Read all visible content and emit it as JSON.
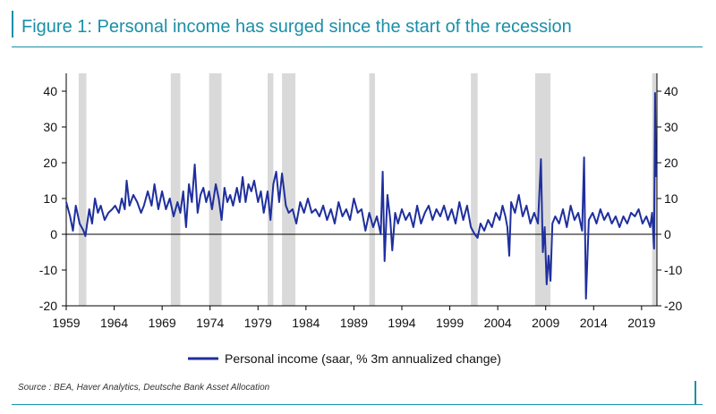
{
  "title": "Figure 1: Personal income has surged since the start of the recession",
  "source": "Source : BEA, Haver Analytics, Deutsche Bank Asset Allocation",
  "colors": {
    "series": "#1f2f9e",
    "recession": "#d9d9d9",
    "accent": "#1a8fa8",
    "axis": "#000000"
  },
  "chart_data": {
    "type": "line",
    "title": "Figure 1: Personal income has surged since the start of the recession",
    "xlabel": "",
    "ylabel": "",
    "xlim": [
      1959,
      2020.6
    ],
    "ylim": [
      -20,
      45
    ],
    "y_ticks": [
      -20,
      -10,
      0,
      10,
      20,
      30,
      40
    ],
    "y_ticks_right": [
      -20,
      -10,
      0,
      10,
      20,
      30,
      40
    ],
    "x_ticks": [
      1959,
      1964,
      1969,
      1974,
      1979,
      1984,
      1989,
      1994,
      1999,
      2004,
      2009,
      2014,
      2019
    ],
    "grid": false,
    "legend": "bottom-center",
    "recessions": [
      [
        1960.3,
        1961.1
      ],
      [
        1969.9,
        1970.9
      ],
      [
        1973.9,
        1975.2
      ],
      [
        1980.0,
        1980.6
      ],
      [
        1981.5,
        1982.9
      ],
      [
        1990.6,
        1991.2
      ],
      [
        2001.2,
        2001.9
      ],
      [
        2007.9,
        2009.5
      ],
      [
        2020.1,
        2020.6
      ]
    ],
    "series": [
      {
        "name": "Personal income (saar, % 3m annualized change)",
        "points": [
          [
            1959.0,
            9
          ],
          [
            1959.4,
            5
          ],
          [
            1959.7,
            1
          ],
          [
            1960.0,
            8
          ],
          [
            1960.4,
            3
          ],
          [
            1960.8,
            1
          ],
          [
            1961.0,
            -0.5
          ],
          [
            1961.4,
            7
          ],
          [
            1961.7,
            3
          ],
          [
            1962.0,
            10
          ],
          [
            1962.3,
            6
          ],
          [
            1962.6,
            8
          ],
          [
            1963.0,
            4
          ],
          [
            1963.4,
            6
          ],
          [
            1963.8,
            7
          ],
          [
            1964.1,
            8
          ],
          [
            1964.5,
            6
          ],
          [
            1964.8,
            10
          ],
          [
            1965.1,
            7
          ],
          [
            1965.3,
            15
          ],
          [
            1965.6,
            8
          ],
          [
            1966.0,
            11
          ],
          [
            1966.4,
            9
          ],
          [
            1966.8,
            6
          ],
          [
            1967.1,
            8
          ],
          [
            1967.5,
            12
          ],
          [
            1967.9,
            8
          ],
          [
            1968.2,
            14
          ],
          [
            1968.6,
            7
          ],
          [
            1969.0,
            12
          ],
          [
            1969.4,
            7
          ],
          [
            1969.8,
            10
          ],
          [
            1970.2,
            5
          ],
          [
            1970.6,
            9
          ],
          [
            1970.9,
            6
          ],
          [
            1971.2,
            12
          ],
          [
            1971.5,
            2
          ],
          [
            1971.8,
            14
          ],
          [
            1972.1,
            9
          ],
          [
            1972.4,
            19.5
          ],
          [
            1972.7,
            6
          ],
          [
            1973.0,
            11
          ],
          [
            1973.3,
            13
          ],
          [
            1973.6,
            9
          ],
          [
            1973.9,
            12
          ],
          [
            1974.2,
            7
          ],
          [
            1974.6,
            14
          ],
          [
            1974.9,
            10
          ],
          [
            1975.2,
            4
          ],
          [
            1975.5,
            13
          ],
          [
            1975.8,
            9
          ],
          [
            1976.1,
            11
          ],
          [
            1976.4,
            8
          ],
          [
            1976.8,
            13
          ],
          [
            1977.1,
            9
          ],
          [
            1977.4,
            16
          ],
          [
            1977.7,
            9
          ],
          [
            1978.0,
            14
          ],
          [
            1978.3,
            12
          ],
          [
            1978.6,
            15
          ],
          [
            1979.0,
            9
          ],
          [
            1979.3,
            12
          ],
          [
            1979.6,
            6
          ],
          [
            1980.0,
            12
          ],
          [
            1980.3,
            4
          ],
          [
            1980.6,
            14
          ],
          [
            1980.9,
            17.5
          ],
          [
            1981.2,
            9
          ],
          [
            1981.5,
            17
          ],
          [
            1981.9,
            8
          ],
          [
            1982.2,
            6
          ],
          [
            1982.6,
            7
          ],
          [
            1983.0,
            3
          ],
          [
            1983.4,
            9
          ],
          [
            1983.8,
            6
          ],
          [
            1984.2,
            10
          ],
          [
            1984.6,
            6
          ],
          [
            1985.0,
            7
          ],
          [
            1985.4,
            5
          ],
          [
            1985.8,
            8
          ],
          [
            1986.2,
            4
          ],
          [
            1986.6,
            7
          ],
          [
            1987.0,
            3
          ],
          [
            1987.4,
            9
          ],
          [
            1987.8,
            5
          ],
          [
            1988.2,
            7
          ],
          [
            1988.6,
            4
          ],
          [
            1989.0,
            10
          ],
          [
            1989.4,
            6
          ],
          [
            1989.8,
            7
          ],
          [
            1990.2,
            1
          ],
          [
            1990.6,
            6
          ],
          [
            1991.0,
            2
          ],
          [
            1991.4,
            5
          ],
          [
            1991.8,
            0
          ],
          [
            1992.0,
            17.5
          ],
          [
            1992.2,
            -7.5
          ],
          [
            1992.5,
            11
          ],
          [
            1992.8,
            4
          ],
          [
            1993.0,
            -4.5
          ],
          [
            1993.3,
            6
          ],
          [
            1993.6,
            3
          ],
          [
            1994.0,
            7
          ],
          [
            1994.4,
            4
          ],
          [
            1994.8,
            6
          ],
          [
            1995.2,
            2
          ],
          [
            1995.6,
            8
          ],
          [
            1996.0,
            3
          ],
          [
            1996.4,
            6
          ],
          [
            1996.8,
            8
          ],
          [
            1997.2,
            4
          ],
          [
            1997.6,
            7
          ],
          [
            1998.0,
            5
          ],
          [
            1998.4,
            8
          ],
          [
            1998.8,
            4
          ],
          [
            1999.2,
            7
          ],
          [
            1999.6,
            3
          ],
          [
            2000.0,
            9
          ],
          [
            2000.4,
            4
          ],
          [
            2000.8,
            8
          ],
          [
            2001.2,
            2
          ],
          [
            2001.6,
            0
          ],
          [
            2001.9,
            -1
          ],
          [
            2002.2,
            3
          ],
          [
            2002.6,
            1
          ],
          [
            2003.0,
            4
          ],
          [
            2003.4,
            2
          ],
          [
            2003.8,
            6
          ],
          [
            2004.2,
            4
          ],
          [
            2004.5,
            8
          ],
          [
            2004.8,
            5
          ],
          [
            2005.0,
            2
          ],
          [
            2005.2,
            -6
          ],
          [
            2005.4,
            9
          ],
          [
            2005.8,
            6
          ],
          [
            2006.2,
            11
          ],
          [
            2006.6,
            5
          ],
          [
            2007.0,
            8
          ],
          [
            2007.4,
            3
          ],
          [
            2007.8,
            6
          ],
          [
            2008.2,
            3
          ],
          [
            2008.5,
            21
          ],
          [
            2008.7,
            -5
          ],
          [
            2008.9,
            2
          ],
          [
            2009.1,
            -14
          ],
          [
            2009.3,
            -6
          ],
          [
            2009.5,
            -13
          ],
          [
            2009.7,
            3
          ],
          [
            2010.0,
            5
          ],
          [
            2010.4,
            3
          ],
          [
            2010.8,
            7
          ],
          [
            2011.2,
            2
          ],
          [
            2011.6,
            8
          ],
          [
            2012.0,
            4
          ],
          [
            2012.4,
            6
          ],
          [
            2012.8,
            1
          ],
          [
            2013.0,
            21.5
          ],
          [
            2013.2,
            -18
          ],
          [
            2013.5,
            4
          ],
          [
            2013.9,
            6
          ],
          [
            2014.3,
            3
          ],
          [
            2014.7,
            7
          ],
          [
            2015.1,
            4
          ],
          [
            2015.5,
            6
          ],
          [
            2015.9,
            3
          ],
          [
            2016.3,
            5
          ],
          [
            2016.7,
            2
          ],
          [
            2017.1,
            5
          ],
          [
            2017.5,
            3
          ],
          [
            2017.9,
            6
          ],
          [
            2018.3,
            5
          ],
          [
            2018.7,
            7
          ],
          [
            2019.1,
            3
          ],
          [
            2019.5,
            5
          ],
          [
            2019.9,
            2
          ],
          [
            2020.1,
            6
          ],
          [
            2020.3,
            -4
          ],
          [
            2020.4,
            39.5
          ],
          [
            2020.5,
            16
          ]
        ]
      }
    ]
  }
}
